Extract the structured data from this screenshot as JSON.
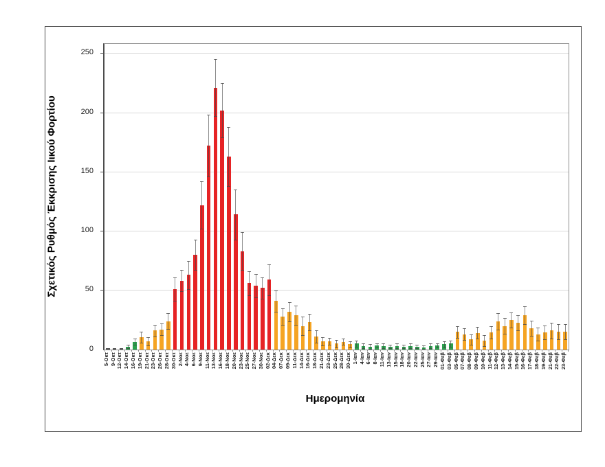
{
  "chart_data": {
    "type": "bar",
    "title": "",
    "xlabel": "Ημερομηνία",
    "ylabel": "Σχετικός Ρυθμός Έκκρισης Ιικού Φορτίου",
    "ylim": [
      0,
      250
    ],
    "yticks": [
      0,
      50,
      100,
      150,
      200,
      250
    ],
    "grid": true,
    "legend": "none",
    "error_bars": true,
    "palette": {
      "red": "#e62325",
      "orange": "#f5a423",
      "green": "#2aa14c",
      "gray": "#4f4f4f"
    },
    "categories": [
      "5-Οκτ",
      "9-Οκτ",
      "12-Οκτ",
      "14-Οκτ",
      "16-Οκτ",
      "19-Οκτ",
      "21-Οκτ",
      "23-Οκτ",
      "26-Οκτ",
      "28-Οκτ",
      "30-Οκτ",
      "2-Νοε",
      "4-Νοε",
      "6-Νοε",
      "9-Νοε",
      "11-Νοε",
      "13-Νοε",
      "16-Νοε",
      "18-Νοε",
      "20-Νοε",
      "23-Νοε",
      "25-Νοε",
      "27-Νοε",
      "30-Νοε",
      "02-Δεκ",
      "04-Δεκ",
      "07-Δεκ",
      "09-Δεκ",
      "11-Δεκ",
      "14-Δεκ",
      "16-Δεκ",
      "18-Δεκ",
      "21-Δεκ",
      "23-Δεκ",
      "25-Δεκ",
      "28-Δεκ",
      "30-Δεκ",
      "1-Ιαν",
      "4-Ιαν",
      "6-Ιαν",
      "8-Ιαν",
      "11-Ιαν",
      "13-Ιαν",
      "15-Ιαν",
      "18-Ιαν",
      "20-Ιαν",
      "22-Ιαν",
      "25-Ιαν",
      "27-Ιαν",
      "29-Ιαν",
      "01-Φεβ",
      "03-Φεβ",
      "05-Φεβ",
      "07-Φεβ",
      "08-Φεβ",
      "09-Φεβ",
      "10-Φεβ",
      "11-Φεβ",
      "12-Φεβ",
      "13-Φεβ",
      "14-Φεβ",
      "15-Φεβ",
      "16-Φεβ",
      "17-Φεβ",
      "18-Φεβ",
      "19-Φεβ",
      "21-Φεβ",
      "22-Φεβ",
      "23-Φεβ"
    ],
    "values": [
      1,
      1,
      1,
      2.5,
      6.5,
      10.5,
      7,
      16,
      17,
      24,
      51,
      58,
      63,
      80,
      122,
      172,
      221,
      202,
      163,
      114,
      83,
      56,
      54,
      52,
      59,
      41,
      28,
      32,
      29,
      20,
      23,
      11,
      7,
      7,
      5,
      6.5,
      4.5,
      5,
      3,
      2.5,
      3.5,
      3,
      2.5,
      3,
      2.5,
      3,
      2.5,
      2,
      3,
      3.5,
      4.5,
      5,
      15,
      13,
      8.5,
      14,
      7.5,
      14.5,
      24,
      20,
      25,
      22.5,
      29,
      18,
      13,
      14.5,
      16,
      15,
      15
    ],
    "errors": [
      0.4,
      0.4,
      0.4,
      1.5,
      2.5,
      4.5,
      3.5,
      5,
      5,
      6.5,
      10,
      9,
      12,
      13,
      20,
      26,
      24,
      23,
      25,
      21,
      16,
      10,
      10,
      9,
      13,
      9,
      7,
      8,
      8,
      8,
      7,
      5,
      3.5,
      3,
      3,
      2.5,
      2.5,
      2.5,
      2,
      2,
      2,
      2,
      1.5,
      2,
      1.5,
      2,
      1.5,
      1.5,
      2,
      2,
      2.5,
      2.5,
      5,
      5,
      4.5,
      5,
      4.5,
      5.5,
      7,
      6.5,
      6.5,
      6.5,
      7.5,
      6.5,
      5.5,
      6,
      6.5,
      6.5,
      6.5
    ],
    "bar_colors": [
      "gray",
      "gray",
      "gray",
      "green",
      "green",
      "orange",
      "orange",
      "orange",
      "orange",
      "orange",
      "red",
      "red",
      "red",
      "red",
      "red",
      "red",
      "red",
      "red",
      "red",
      "red",
      "red",
      "red",
      "red",
      "red",
      "red",
      "orange",
      "orange",
      "orange",
      "orange",
      "orange",
      "orange",
      "orange",
      "orange",
      "orange",
      "orange",
      "orange",
      "orange",
      "green",
      "green",
      "green",
      "green",
      "green",
      "green",
      "green",
      "green",
      "green",
      "green",
      "green",
      "green",
      "green",
      "green",
      "green",
      "orange",
      "orange",
      "orange",
      "orange",
      "orange",
      "orange",
      "orange",
      "orange",
      "orange",
      "orange",
      "orange",
      "orange",
      "orange",
      "orange",
      "orange",
      "orange",
      "orange"
    ]
  }
}
